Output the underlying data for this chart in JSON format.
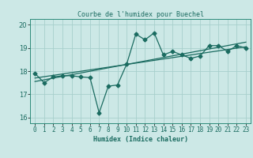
{
  "title": "Courbe de l'humidex pour Buechel",
  "xlabel": "Humidex (Indice chaleur)",
  "bg_color": "#cce8e6",
  "grid_color": "#a8cfcc",
  "line_color": "#1a6b60",
  "spine_color": "#2d8b7a",
  "xlim": [
    -0.5,
    23.5
  ],
  "ylim": [
    15.75,
    20.25
  ],
  "yticks": [
    16,
    17,
    18,
    19,
    20
  ],
  "x": [
    0,
    1,
    2,
    3,
    4,
    5,
    6,
    7,
    8,
    9,
    10,
    11,
    12,
    13,
    14,
    15,
    16,
    17,
    18,
    19,
    20,
    21,
    22,
    23
  ],
  "y": [
    17.9,
    17.5,
    17.75,
    17.8,
    17.8,
    17.75,
    17.72,
    16.2,
    17.35,
    17.4,
    18.3,
    19.6,
    19.35,
    19.65,
    18.7,
    18.85,
    18.7,
    18.55,
    18.65,
    19.1,
    19.1,
    18.85,
    19.1,
    19.0
  ],
  "trend1_x": [
    0,
    23
  ],
  "trend1_y": [
    17.7,
    19.05
  ],
  "trend2_x": [
    0,
    23
  ],
  "trend2_y": [
    17.55,
    19.25
  ],
  "marker_size": 2.5,
  "line_width": 0.9,
  "xlabel_fontsize": 6.0,
  "tick_fontsize": 5.5,
  "ytick_fontsize": 6.0
}
